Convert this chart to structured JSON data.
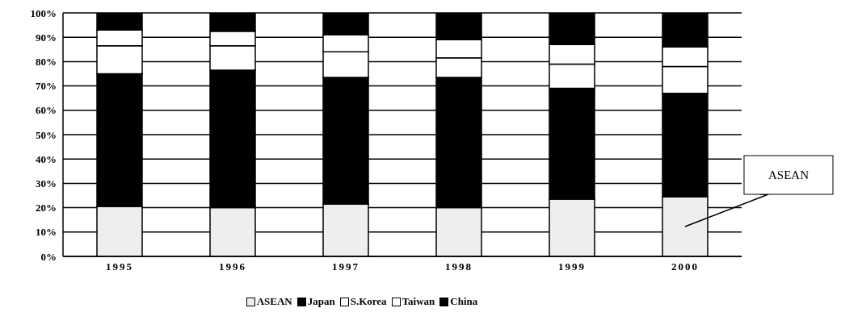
{
  "chart_data": {
    "type": "bar",
    "stacked": true,
    "categories": [
      "1995",
      "1996",
      "1997",
      "1998",
      "1999",
      "2000"
    ],
    "series": [
      {
        "name": "ASEAN",
        "color": "#eeeeee",
        "values": [
          20.5,
          20,
          21.5,
          20,
          23.5,
          24.5
        ]
      },
      {
        "name": "Japan",
        "color": "#000000",
        "values": [
          54.5,
          56.5,
          52,
          53.5,
          45.5,
          42.5
        ]
      },
      {
        "name": "S.Korea",
        "color": "#ffffff",
        "values": [
          11.5,
          10,
          10.5,
          8,
          10,
          11
        ]
      },
      {
        "name": "Taiwan",
        "color": "#ffffff",
        "values": [
          6.5,
          6,
          7,
          7.5,
          8,
          8
        ]
      },
      {
        "name": "China",
        "color": "#000000",
        "values": [
          7,
          7.5,
          9,
          11,
          13,
          14
        ]
      }
    ],
    "ylim": [
      0,
      100
    ],
    "yticks": [
      {
        "value": 0,
        "label": "0%"
      },
      {
        "value": 10,
        "label": "10%"
      },
      {
        "value": 20,
        "label": "20%"
      },
      {
        "value": 30,
        "label": "30%"
      },
      {
        "value": 40,
        "label": "40%"
      },
      {
        "value": 50,
        "label": "50%"
      },
      {
        "value": 60,
        "label": "60%"
      },
      {
        "value": 70,
        "label": "70%"
      },
      {
        "value": 80,
        "label": "80%"
      },
      {
        "value": 90,
        "label": "90%"
      },
      {
        "value": 100,
        "label": "100%"
      }
    ],
    "grid": "y",
    "legend": "bottom",
    "annotations": [
      "ASEAN"
    ]
  }
}
